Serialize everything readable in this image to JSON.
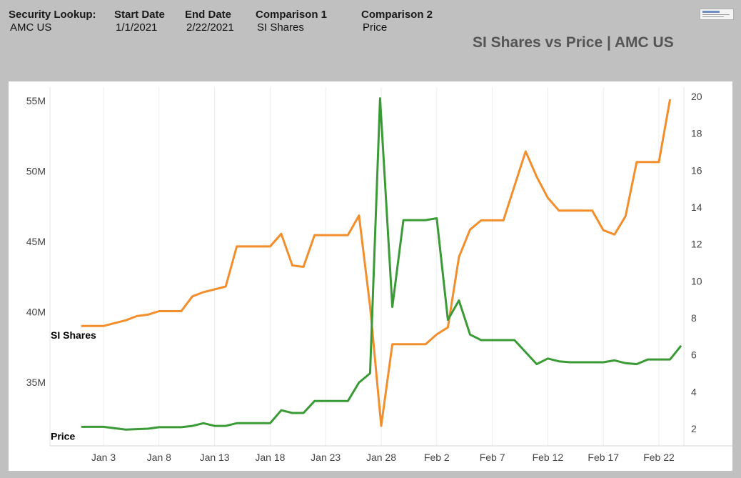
{
  "filters": [
    {
      "label": "Security Lookup:",
      "value": "AMC US"
    },
    {
      "label": "Start Date",
      "value": "1/1/2021"
    },
    {
      "label": "End Date",
      "value": "2/22/2021"
    },
    {
      "label": "Comparison 1",
      "value": "SI Shares"
    },
    {
      "label": "Comparison 2",
      "value": "Price"
    }
  ],
  "chart_data": {
    "type": "line",
    "title": "SI Shares vs Price | AMC US",
    "x_ticks": [
      "Jan 3",
      "Jan 8",
      "Jan 13",
      "Jan 18",
      "Jan 23",
      "Jan 28",
      "Feb 2",
      "Feb 7",
      "Feb 12",
      "Feb 17",
      "Feb 22"
    ],
    "y_left": {
      "ticks": [
        "35M",
        "40M",
        "45M",
        "50M",
        "55M"
      ],
      "tick_values": [
        35,
        40,
        45,
        50,
        55
      ],
      "range": [
        31.8,
        56.0
      ],
      "unit": "M"
    },
    "y_right": {
      "ticks": [
        "2",
        "4",
        "6",
        "8",
        "10",
        "12",
        "14",
        "16",
        "18",
        "20"
      ],
      "tick_values": [
        2,
        4,
        6,
        8,
        10,
        12,
        14,
        16,
        18,
        20
      ],
      "range": [
        1.0,
        20.5
      ]
    },
    "grid": "vertical",
    "series": [
      {
        "name": "SI Shares",
        "axis": "left",
        "color": "#f28e2b",
        "points": [
          [
            "2021-01-01",
            39.0
          ],
          [
            "2021-01-03",
            39.0
          ],
          [
            "2021-01-05",
            39.4
          ],
          [
            "2021-01-06",
            39.7
          ],
          [
            "2021-01-07",
            39.8
          ],
          [
            "2021-01-08",
            40.05
          ],
          [
            "2021-01-10",
            40.05
          ],
          [
            "2021-01-11",
            41.1
          ],
          [
            "2021-01-12",
            41.4
          ],
          [
            "2021-01-14",
            41.8
          ],
          [
            "2021-01-15",
            44.65
          ],
          [
            "2021-01-18",
            44.65
          ],
          [
            "2021-01-19",
            45.55
          ],
          [
            "2021-01-20",
            43.3
          ],
          [
            "2021-01-21",
            43.2
          ],
          [
            "2021-01-22",
            45.45
          ],
          [
            "2021-01-25",
            45.45
          ],
          [
            "2021-01-26",
            46.85
          ],
          [
            "2021-01-27",
            40.4
          ],
          [
            "2021-01-28",
            31.9
          ],
          [
            "2021-01-29",
            37.7
          ],
          [
            "2021-02-01",
            37.7
          ],
          [
            "2021-02-02",
            38.4
          ],
          [
            "2021-02-03",
            38.9
          ],
          [
            "2021-02-04",
            43.9
          ],
          [
            "2021-02-05",
            45.85
          ],
          [
            "2021-02-06",
            46.5
          ],
          [
            "2021-02-08",
            46.5
          ],
          [
            "2021-02-10",
            51.4
          ],
          [
            "2021-02-11",
            49.6
          ],
          [
            "2021-02-12",
            48.1
          ],
          [
            "2021-02-13",
            47.2
          ],
          [
            "2021-02-15",
            47.2
          ],
          [
            "2021-02-16",
            47.2
          ],
          [
            "2021-02-17",
            45.8
          ],
          [
            "2021-02-18",
            45.5
          ],
          [
            "2021-02-19",
            46.8
          ],
          [
            "2021-02-20",
            50.65
          ],
          [
            "2021-02-22",
            50.65
          ],
          [
            "2021-02-23",
            55.1
          ]
        ]
      },
      {
        "name": "Price",
        "axis": "right",
        "color": "#3a9a36",
        "points": [
          [
            "2021-01-01",
            2.1
          ],
          [
            "2021-01-03",
            2.1
          ],
          [
            "2021-01-05",
            1.95
          ],
          [
            "2021-01-07",
            2.0
          ],
          [
            "2021-01-08",
            2.08
          ],
          [
            "2021-01-10",
            2.08
          ],
          [
            "2021-01-11",
            2.15
          ],
          [
            "2021-01-12",
            2.3
          ],
          [
            "2021-01-13",
            2.15
          ],
          [
            "2021-01-14",
            2.15
          ],
          [
            "2021-01-15",
            2.3
          ],
          [
            "2021-01-17",
            2.3
          ],
          [
            "2021-01-18",
            2.3
          ],
          [
            "2021-01-19",
            3.0
          ],
          [
            "2021-01-20",
            2.85
          ],
          [
            "2021-01-21",
            2.85
          ],
          [
            "2021-01-22",
            3.5
          ],
          [
            "2021-01-24",
            3.5
          ],
          [
            "2021-01-25",
            3.5
          ],
          [
            "2021-01-26",
            4.5
          ],
          [
            "2021-01-27",
            5.0
          ],
          [
            "2021-01-27.9",
            19.9
          ],
          [
            "2021-01-29",
            8.6
          ],
          [
            "2021-01-30",
            13.3
          ],
          [
            "2021-02-01",
            13.3
          ],
          [
            "2021-02-02",
            13.4
          ],
          [
            "2021-02-03",
            7.9
          ],
          [
            "2021-02-04",
            8.95
          ],
          [
            "2021-02-05",
            7.1
          ],
          [
            "2021-02-06",
            6.8
          ],
          [
            "2021-02-08",
            6.8
          ],
          [
            "2021-02-09",
            6.8
          ],
          [
            "2021-02-11",
            5.5
          ],
          [
            "2021-02-12",
            5.8
          ],
          [
            "2021-02-13",
            5.65
          ],
          [
            "2021-02-14",
            5.6
          ],
          [
            "2021-02-16",
            5.6
          ],
          [
            "2021-02-17",
            5.6
          ],
          [
            "2021-02-18",
            5.7
          ],
          [
            "2021-02-19",
            5.55
          ],
          [
            "2021-02-20",
            5.5
          ],
          [
            "2021-02-21",
            5.75
          ],
          [
            "2021-02-22",
            5.75
          ],
          [
            "2021-02-23",
            5.75
          ],
          [
            "2021-02-24",
            6.5
          ]
        ]
      }
    ],
    "labels": [
      {
        "text": "SI Shares",
        "series": "SI Shares"
      },
      {
        "text": "Price",
        "series": "Price"
      }
    ]
  }
}
